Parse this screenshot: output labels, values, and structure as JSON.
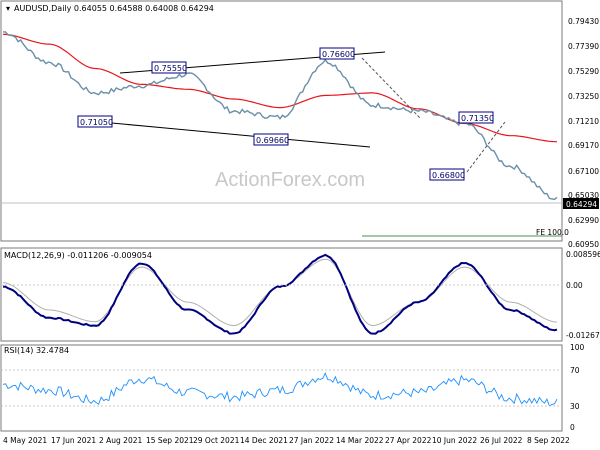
{
  "header": {
    "symbol_line": "AUDUSD,Daily  0.64055 0.64588 0.64008 0.64294",
    "watermark": "ActionForex.com"
  },
  "main_panel": {
    "yticks": [
      "0.79430",
      "0.77390",
      "0.75290",
      "0.73250",
      "0.71210",
      "0.69170",
      "0.67100",
      "0.65030",
      "0.62990",
      "0.60950"
    ],
    "current_price": "0.64294",
    "fe_label": "FE 100.0",
    "annotations": [
      "0.75550",
      "0.76600",
      "0.71050",
      "0.69660",
      "0.71350",
      "0.66800"
    ]
  },
  "macd_panel": {
    "title": "MACD(12,26,9) -0.011206 -0.009054",
    "yticks": [
      "0.008596",
      "0.00",
      "-0.01267"
    ]
  },
  "rsi_panel": {
    "title": "RSI(14) 32.4784",
    "yticks": [
      "100",
      "70",
      "30",
      "0"
    ]
  },
  "x_axis": {
    "labels": [
      "4 May 2021",
      "17 Jun 2021",
      "2 Aug 2021",
      "15 Sep 2021",
      "29 Oct 2021",
      "14 Dec 2021",
      "27 Jan 2022",
      "14 Mar 2022",
      "27 Apr 2022",
      "10 Jun 2022",
      "26 Jul 2022",
      "8 Sep 2022"
    ]
  },
  "colors": {
    "price": "#6a8fa8",
    "ma": "#e8141b",
    "macd": "#000080",
    "signal": "#b0b0b0",
    "rsi": "#1e90ff",
    "annotation_border": "#000080"
  },
  "chart_data": [
    {
      "type": "line",
      "title": "AUDUSD,Daily",
      "x": [
        "2021-05-04",
        "2021-06-17",
        "2021-08-02",
        "2021-09-15",
        "2021-10-29",
        "2021-12-14",
        "2022-01-27",
        "2022-03-14",
        "2022-04-27",
        "2022-06-10",
        "2022-07-26",
        "2022-09-08",
        "2022-09-13"
      ],
      "series": [
        {
          "values": [
            0.78,
            0.755,
            0.73,
            0.736,
            0.745,
            0.715,
            0.71,
            0.756,
            0.72,
            0.715,
            0.705,
            0.67,
            0.6429
          ]
        },
        {
          "values": [
            0.778,
            0.77,
            0.75,
            0.737,
            0.733,
            0.725,
            0.718,
            0.728,
            0.73,
            0.717,
            0.705,
            0.695,
            0.69
          ]
        }
      ],
      "ylim": [
        0.6095,
        0.8045
      ]
    },
    {
      "type": "line",
      "title": "MACD(12,26,9)",
      "series": [
        {
          "values": [
            0.0,
            -0.008,
            -0.01,
            0.006,
            -0.006,
            -0.012,
            0.0,
            0.008,
            -0.012,
            -0.004,
            0.006,
            -0.006,
            -0.0112
          ]
        },
        {
          "values": [
            0.001,
            -0.006,
            -0.009,
            0.005,
            -0.004,
            -0.01,
            0.0,
            0.007,
            -0.01,
            -0.004,
            0.005,
            -0.004,
            -0.0091
          ]
        }
      ],
      "ylim": [
        -0.01267,
        0.008596
      ]
    },
    {
      "type": "line",
      "title": "RSI(14)",
      "series": [
        {
          "values": [
            55,
            48,
            35,
            62,
            45,
            40,
            48,
            65,
            42,
            45,
            60,
            38,
            32.48
          ]
        }
      ],
      "ylim": [
        0,
        100
      ]
    }
  ]
}
